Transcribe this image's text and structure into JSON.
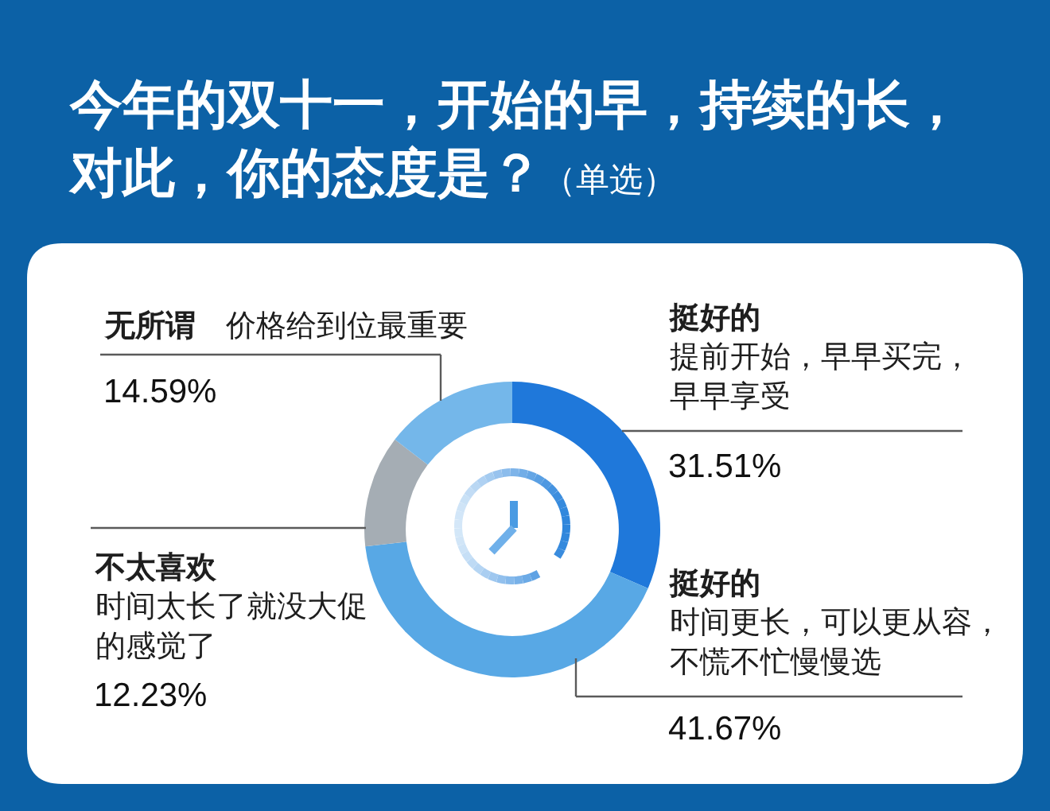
{
  "chart_data": {
    "type": "donut",
    "title": "今年的双十一，开始的早，持续的长，对此，你的态度是？",
    "subtitle": "（单选）",
    "categories": [
      "挺好的提前开始，早早买完，早早享受",
      "挺好的时间更长，可以更从容，不慌不忙慢慢选",
      "不太喜欢时间太长了就没大促的感觉了",
      "无所谓 价格给到位最重要"
    ],
    "values": [
      31.51,
      41.67,
      12.23,
      14.59
    ],
    "colors": [
      "#1f78da",
      "#58a8e5",
      "#a5adb4",
      "#74b7ea"
    ],
    "value_labels": [
      "31.51%",
      "41.67%",
      "12.23%",
      "14.59%"
    ]
  }
}
